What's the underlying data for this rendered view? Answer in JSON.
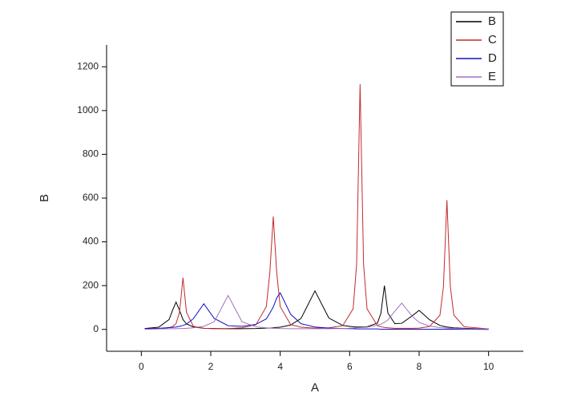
{
  "chart_data": {
    "type": "line",
    "x_label": "A",
    "y_label": "B",
    "x": [
      0.1,
      0.5,
      0.8,
      0.9,
      1.0,
      1.1,
      1.2,
      1.3,
      1.5,
      1.8,
      2.1,
      2.5,
      2.9,
      3.3,
      3.6,
      3.7,
      3.8,
      3.9,
      4.0,
      4.3,
      4.6,
      5.0,
      5.4,
      5.8,
      6.1,
      6.2,
      6.3,
      6.4,
      6.5,
      6.8,
      6.9,
      7.0,
      7.1,
      7.3,
      7.5,
      7.8,
      8.0,
      8.3,
      8.6,
      8.7,
      8.8,
      8.9,
      9.0,
      9.3,
      10.0
    ],
    "series": [
      {
        "name": "B",
        "color": "#000000",
        "values": [
          4,
          10,
          45,
          87,
          125,
          87,
          45,
          25,
          11,
          5,
          4,
          3,
          3,
          4,
          6,
          6,
          7,
          9,
          10,
          20,
          50,
          176,
          52,
          18,
          12,
          11,
          11,
          11,
          12,
          29,
          74,
          200,
          75,
          26,
          28,
          62,
          87,
          44,
          18,
          14,
          11,
          9,
          7,
          5,
          2
        ]
      },
      {
        "name": "C",
        "color": "#c42a2a",
        "values": [
          1,
          3,
          8,
          13,
          26,
          78,
          236,
          78,
          14,
          5,
          3,
          4,
          7,
          21,
          104,
          258,
          516,
          258,
          104,
          22,
          10,
          6,
          7,
          17,
          94,
          297,
          1121,
          297,
          94,
          17,
          12,
          9,
          7,
          5,
          5,
          5,
          6,
          13,
          65,
          195,
          591,
          194,
          65,
          12,
          2
        ]
      },
      {
        "name": "D",
        "color": "#1010c0",
        "values": [
          3,
          5,
          8,
          9,
          11,
          14,
          18,
          24,
          49,
          117,
          50,
          17,
          14,
          23,
          48,
          74,
          102,
          144,
          167,
          69,
          26,
          11,
          6,
          4,
          3,
          2,
          2,
          2,
          2,
          2,
          1,
          1,
          1,
          1,
          1,
          1,
          1,
          1,
          1,
          1,
          1,
          1,
          1,
          1,
          0
        ]
      },
      {
        "name": "E",
        "color": "#a070c0",
        "values": [
          1,
          2,
          3,
          3,
          3,
          4,
          4,
          5,
          7,
          14,
          35,
          155,
          35,
          12,
          7,
          6,
          5,
          5,
          4,
          3,
          3,
          3,
          3,
          4,
          6,
          7,
          8,
          9,
          10,
          19,
          24,
          32,
          43,
          83,
          120,
          60,
          32,
          15,
          8,
          7,
          6,
          5,
          5,
          3,
          2
        ]
      }
    ],
    "xlim": [
      -1,
      11
    ],
    "xticks": [
      0,
      2,
      4,
      6,
      8,
      10
    ],
    "ylim": [
      -100,
      1300
    ],
    "yticks": [
      0,
      200,
      400,
      600,
      800,
      1000,
      1200
    ],
    "legend": "top-right"
  }
}
